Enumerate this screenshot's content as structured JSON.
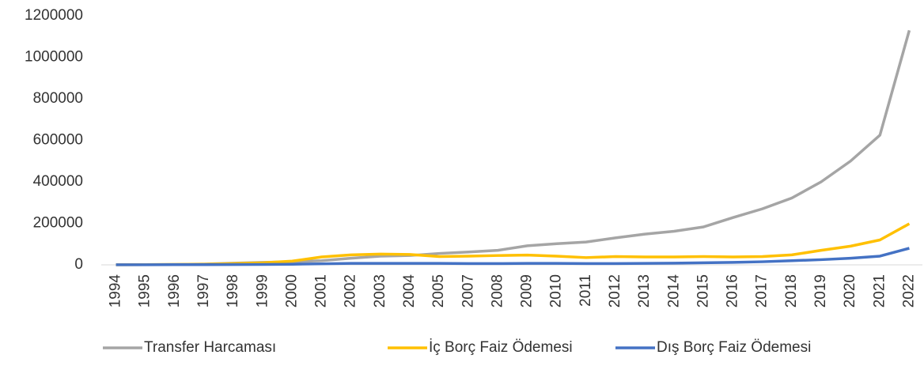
{
  "chart_data": {
    "type": "line",
    "categories": [
      "1994",
      "1995",
      "1996",
      "1997",
      "1998",
      "1999",
      "2000",
      "2001",
      "2002",
      "2003",
      "2004",
      "2005",
      "2007",
      "2008",
      "2009",
      "2010",
      "2011",
      "2012",
      "2013",
      "2014",
      "2015",
      "2016",
      "2017",
      "2018",
      "2019",
      "2020",
      "2021",
      "2022"
    ],
    "series": [
      {
        "name": "Transfer Harcaması",
        "color": "#a5a5a5",
        "values": [
          500,
          1000,
          2000,
          4000,
          8000,
          12000,
          15000,
          20000,
          32000,
          42000,
          45000,
          55000,
          62000,
          70000,
          92000,
          102000,
          110000,
          130000,
          148000,
          162000,
          183000,
          228000,
          270000,
          322000,
          400000,
          500000,
          625000,
          1130000
        ]
      },
      {
        "name": "İç Borç Faiz Ödemesi",
        "color": "#ffc000",
        "values": [
          500,
          1000,
          2000,
          3000,
          6000,
          10000,
          18000,
          38000,
          48000,
          52000,
          50000,
          40000,
          42000,
          45000,
          47000,
          42000,
          35000,
          40000,
          38000,
          38000,
          40000,
          38000,
          40000,
          48000,
          70000,
          90000,
          120000,
          198000
        ]
      },
      {
        "name": "Dış Borç Faiz Ödemesi",
        "color": "#4472c4",
        "values": [
          300,
          500,
          800,
          1000,
          1500,
          2000,
          3000,
          5000,
          7000,
          7000,
          7000,
          7000,
          6000,
          6000,
          7000,
          7000,
          6000,
          6000,
          7000,
          8000,
          10000,
          12000,
          15000,
          20000,
          25000,
          32000,
          42000,
          80000
        ]
      }
    ],
    "ylim": [
      0,
      1200000
    ],
    "yticks": [
      0,
      200000,
      400000,
      600000,
      800000,
      1000000,
      1200000
    ],
    "grid": false
  }
}
